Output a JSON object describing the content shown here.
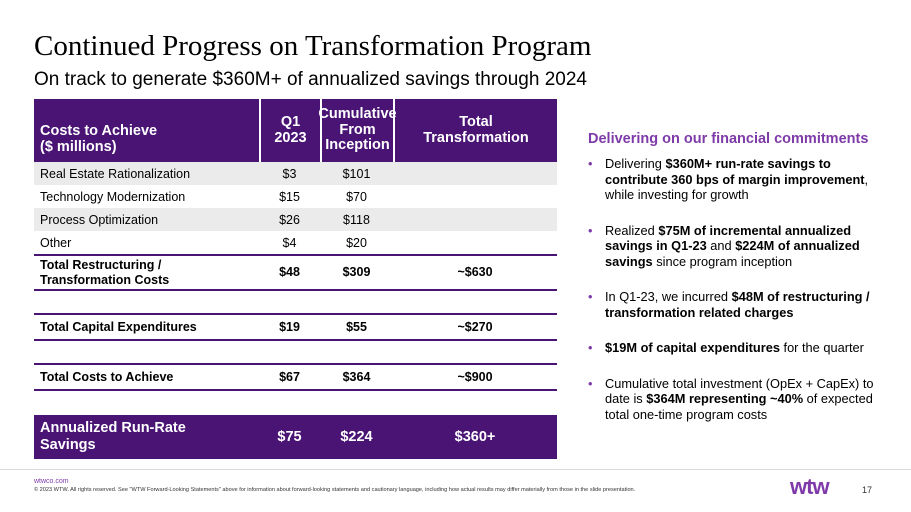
{
  "header": {
    "title": "Continued Progress on Transformation Program",
    "subtitle": "On track to generate $360M+ of annualized savings through 2024"
  },
  "table": {
    "columns": [
      "Costs to Achieve\n($ millions)",
      "Q1\n2023",
      "Cumulative\nFrom\nInception",
      "Total\nTransformation"
    ],
    "rows": [
      {
        "label": "Real Estate Rationalization",
        "q1": "$3",
        "cum": "$101",
        "total": ""
      },
      {
        "label": "Technology Modernization",
        "q1": "$15",
        "cum": "$70",
        "total": ""
      },
      {
        "label": "Process Optimization",
        "q1": "$26",
        "cum": "$118",
        "total": ""
      },
      {
        "label": "Other",
        "q1": "$4",
        "cum": "$20",
        "total": ""
      }
    ],
    "total_restructuring": {
      "label": "Total Restructuring /\nTransformation Costs",
      "q1": "$48",
      "cum": "$309",
      "total": "~$630"
    },
    "total_capex": {
      "label": "Total Capital Expenditures",
      "q1": "$19",
      "cum": "$55",
      "total": "~$270"
    },
    "total_costs": {
      "label": "Total Costs to Achieve",
      "q1": "$67",
      "cum": "$364",
      "total": "~$900"
    },
    "annualized": {
      "label": "Annualized Run-Rate\nSavings",
      "q1": "$75",
      "cum": "$224",
      "total": "$360+"
    }
  },
  "commitments": {
    "heading": "Delivering on our financial commitments",
    "bullet_char": "•",
    "bullets": [
      {
        "a": "Delivering ",
        "b": "$360M+ run-rate savings to contribute 360 bps of margin improvement",
        "c": ", while investing for growth",
        "d": "",
        "e": ""
      },
      {
        "a": "Realized ",
        "b": "$75M of incremental annualized savings in Q1-23",
        "c": " and ",
        "d": "$224M of annualized savings",
        "e": " since program inception"
      },
      {
        "a": "In Q1-23, we incurred ",
        "b": "$48M of restructuring / transformation related charges",
        "c": "",
        "d": "",
        "e": ""
      },
      {
        "a": "",
        "b": "$19M of capital expenditures",
        "c": " for the quarter",
        "d": "",
        "e": ""
      },
      {
        "a": "Cumulative total investment (OpEx + CapEx) to date is ",
        "b": "$364M representing ~40%",
        "c": " of expected total one-time program costs",
        "d": "",
        "e": ""
      }
    ]
  },
  "footer": {
    "site": "wtwco.com",
    "copyright": "© 2023 WTW. All rights reserved. See \"WTW Forward-Looking Statements\" above for information about forward-looking statements and cautionary language, including how actual results may differ materially from those in the slide presentation.",
    "logo": "wtw",
    "page": "17"
  },
  "colors": {
    "brand_purple": "#4a1475",
    "accent_purple": "#7e3aa8"
  }
}
